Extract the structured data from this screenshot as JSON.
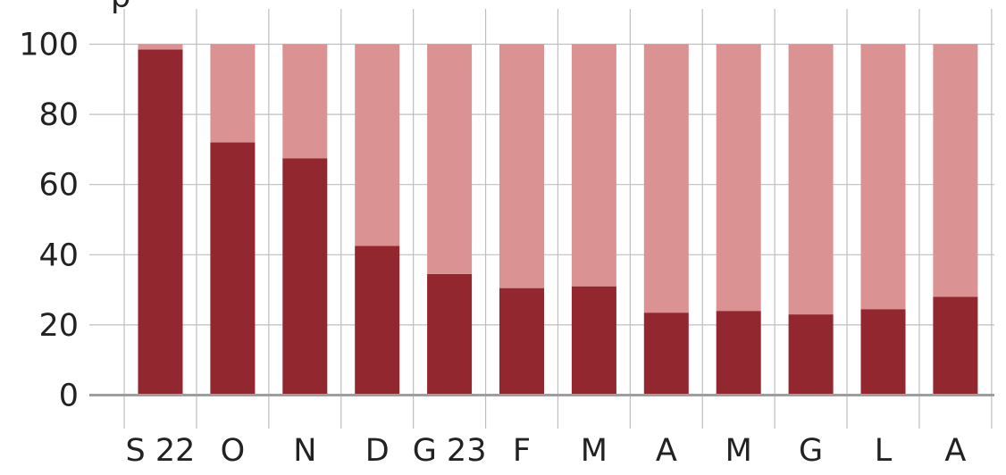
{
  "chart_data": {
    "type": "bar",
    "stacked": true,
    "categories": [
      "S 22",
      "O",
      "N",
      "D",
      "G 23",
      "F",
      "M",
      "A",
      "M",
      "G",
      "L",
      "A"
    ],
    "series": [
      {
        "values": [
          98.5,
          72,
          67.5,
          42.5,
          34.5,
          30.5,
          31,
          23.5,
          24,
          23,
          24.5,
          28
        ],
        "color": "#93272f"
      },
      {
        "values": [
          1.5,
          28,
          32.5,
          57.5,
          65.5,
          69.5,
          69,
          76.5,
          76,
          77,
          75.5,
          72
        ],
        "color": "#da9392"
      }
    ],
    "yticks": [
      0,
      20,
      40,
      60,
      80,
      100
    ],
    "ylim": [
      0,
      100
    ],
    "corner_label": "p",
    "grid": true,
    "gridColor": "#bfbfbf",
    "baselineColor": "#9e9e9e"
  }
}
